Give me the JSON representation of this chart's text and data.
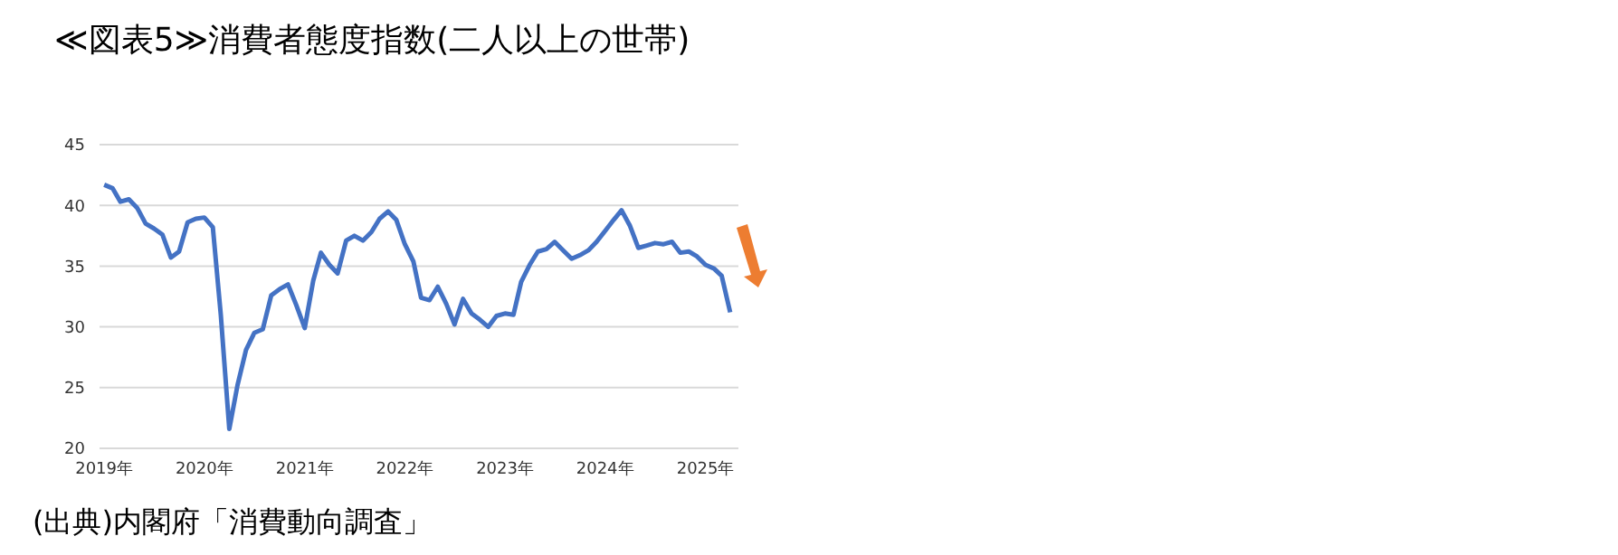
{
  "chart_data": {
    "type": "line",
    "title": "≪図表5≫消費者態度指数(二人以上の世帯)",
    "annotations": [
      "(出典)内閣府「消費動向調査」"
    ],
    "x": [
      "2019-01",
      "2019-02",
      "2019-03",
      "2019-04",
      "2019-05",
      "2019-06",
      "2019-07",
      "2019-08",
      "2019-09",
      "2019-10",
      "2019-11",
      "2019-12",
      "2020-01",
      "2020-02",
      "2020-03",
      "2020-04",
      "2020-05",
      "2020-06",
      "2020-07",
      "2020-08",
      "2020-09",
      "2020-10",
      "2020-11",
      "2020-12",
      "2021-01",
      "2021-02",
      "2021-03",
      "2021-04",
      "2021-05",
      "2021-06",
      "2021-07",
      "2021-08",
      "2021-09",
      "2021-10",
      "2021-11",
      "2021-12",
      "2022-01",
      "2022-02",
      "2022-03",
      "2022-04",
      "2022-05",
      "2022-06",
      "2022-07",
      "2022-08",
      "2022-09",
      "2022-10",
      "2022-11",
      "2022-12",
      "2023-01",
      "2023-02",
      "2023-03",
      "2023-04",
      "2023-05",
      "2023-06",
      "2023-07",
      "2023-08",
      "2023-09",
      "2023-10",
      "2023-11",
      "2023-12",
      "2024-01",
      "2024-02",
      "2024-03",
      "2024-04",
      "2024-05",
      "2024-06",
      "2024-07",
      "2024-08",
      "2024-09",
      "2024-10",
      "2024-11",
      "2024-12",
      "2025-01",
      "2025-02",
      "2025-03",
      "2025-04"
    ],
    "series": [
      {
        "color": "#4472c4",
        "values": [
          41.7,
          41.4,
          40.3,
          40.5,
          39.8,
          38.5,
          38.1,
          37.6,
          35.7,
          36.2,
          38.6,
          38.9,
          39.0,
          38.2,
          31.0,
          21.6,
          25.2,
          28.1,
          29.5,
          29.8,
          32.6,
          33.1,
          33.5,
          31.8,
          29.9,
          33.8,
          36.1,
          35.1,
          34.4,
          37.1,
          37.5,
          37.1,
          37.8,
          38.9,
          39.5,
          38.8,
          36.8,
          35.4,
          32.4,
          32.2,
          33.3,
          31.9,
          30.2,
          32.3,
          31.1,
          30.6,
          30.0,
          30.9,
          31.1,
          31.0,
          33.7,
          35.1,
          36.2,
          36.4,
          37.0,
          36.3,
          35.6,
          35.9,
          36.3,
          37.0,
          37.9,
          38.8,
          39.6,
          38.3,
          36.5,
          36.7,
          36.9,
          36.8,
          37.0,
          36.1,
          36.2,
          35.8,
          35.1,
          34.8,
          34.2,
          31.2
        ]
      }
    ],
    "xlim": [
      "2018-12-15",
      "2025-05"
    ],
    "xticks": [
      {
        "value": "2019-01",
        "label": "2019年"
      },
      {
        "value": "2020-01",
        "label": "2020年"
      },
      {
        "value": "2021-01",
        "label": "2021年"
      },
      {
        "value": "2022-01",
        "label": "2022年"
      },
      {
        "value": "2023-01",
        "label": "2023年"
      },
      {
        "value": "2024-01",
        "label": "2024年"
      },
      {
        "value": "2025-01",
        "label": "2025年"
      }
    ],
    "ylim": [
      20,
      45
    ],
    "yticks": [
      20,
      25,
      30,
      35,
      40,
      45
    ],
    "grid": "y",
    "marker": "none",
    "line_style": "solid"
  }
}
